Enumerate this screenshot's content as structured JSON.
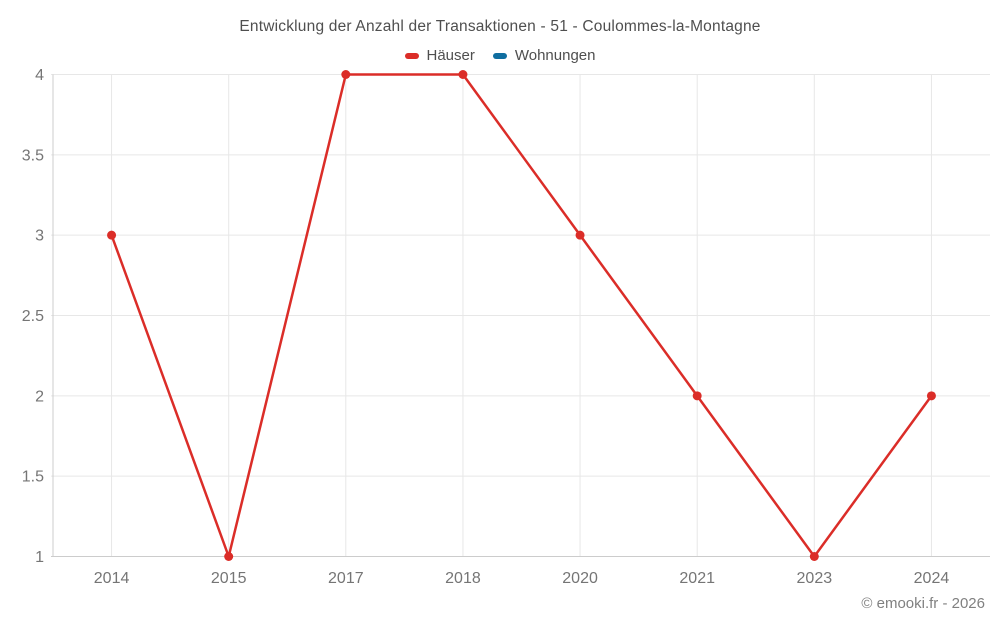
{
  "title": "Entwicklung der Anzahl der Transaktionen - 51 - Coulommes-la-Montagne",
  "footer": "© emooki.fr - 2026",
  "colors": {
    "hauser": "#db2d28",
    "wohnungen": "#106ea0",
    "grid": "#e7e7e7",
    "axis": "#cccccc",
    "title_text": "#4f4f4f",
    "tick_text": "#757575",
    "footer_text": "#808080",
    "background": "#ffffff"
  },
  "chart_data": {
    "type": "line",
    "title": "Entwicklung der Anzahl der Transaktionen - 51 - Coulommes-la-Montagne",
    "categories": [
      "2014",
      "2015",
      "2017",
      "2018",
      "2020",
      "2021",
      "2023",
      "2024"
    ],
    "series": [
      {
        "name": "Häuser",
        "color": "#db2d28",
        "values": [
          3,
          1,
          4,
          4,
          3,
          2,
          1,
          2
        ]
      },
      {
        "name": "Wohnungen",
        "color": "#106ea0",
        "values": []
      }
    ],
    "xlabel": "",
    "ylabel": "",
    "ylim": [
      1,
      4
    ],
    "yticks": [
      1,
      1.5,
      2,
      2.5,
      3,
      3.5,
      4
    ],
    "ytick_labels": [
      "1",
      "1.5",
      "2",
      "2.5",
      "3",
      "3.5",
      "4"
    ],
    "grid": true,
    "legend_position": "top",
    "marker": "circle",
    "annotation": "© emooki.fr - 2026"
  }
}
